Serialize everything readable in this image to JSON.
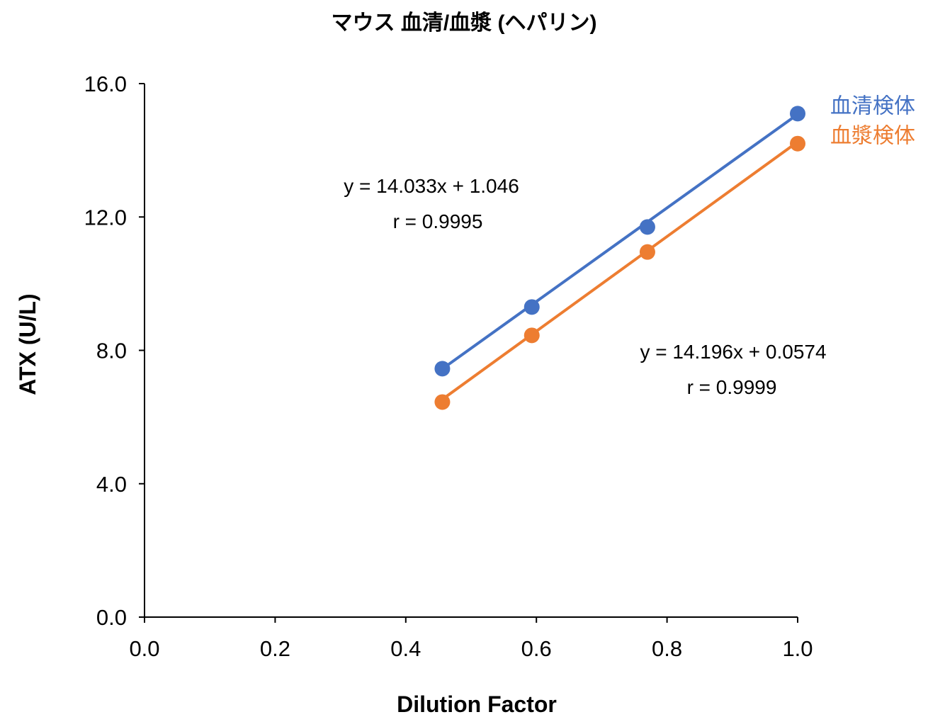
{
  "chart_data": {
    "type": "scatter",
    "title": "マウス 血清/血漿 (ヘパリン)",
    "xlabel": "Dilution Factor",
    "ylabel": "ATX (U/L)",
    "xlim": [
      0.0,
      1.0
    ],
    "ylim": [
      0.0,
      16.0
    ],
    "x_ticks": [
      0.0,
      0.2,
      0.4,
      0.6,
      0.8,
      1.0
    ],
    "x_tick_labels": [
      "0.0",
      "0.2",
      "0.4",
      "0.6",
      "0.8",
      "1.0"
    ],
    "y_ticks": [
      0.0,
      4.0,
      8.0,
      12.0,
      16.0
    ],
    "y_tick_labels": [
      "0.0",
      "4.0",
      "8.0",
      "12.0",
      "16.0"
    ],
    "grid": false,
    "legend_placement": "right",
    "series": [
      {
        "name": "血清検体",
        "color": "#4472C4",
        "x": [
          0.456,
          0.593,
          0.77,
          1.0
        ],
        "y": [
          7.45,
          9.3,
          11.7,
          15.1
        ],
        "trendline": {
          "slope": 14.033,
          "intercept": 1.046
        },
        "equation": "y = 14.033x + 1.046",
        "r_text": "r = 0.9995",
        "annotation_position": "upper-left"
      },
      {
        "name": "血漿検体",
        "color": "#ED7D31",
        "x": [
          0.456,
          0.593,
          0.77,
          1.0
        ],
        "y": [
          6.45,
          8.45,
          10.95,
          14.2
        ],
        "trendline": {
          "slope": 14.196,
          "intercept": 0.0574
        },
        "equation": "y = 14.196x + 0.0574",
        "r_text": "r = 0.9999",
        "annotation_position": "lower-right"
      }
    ]
  }
}
